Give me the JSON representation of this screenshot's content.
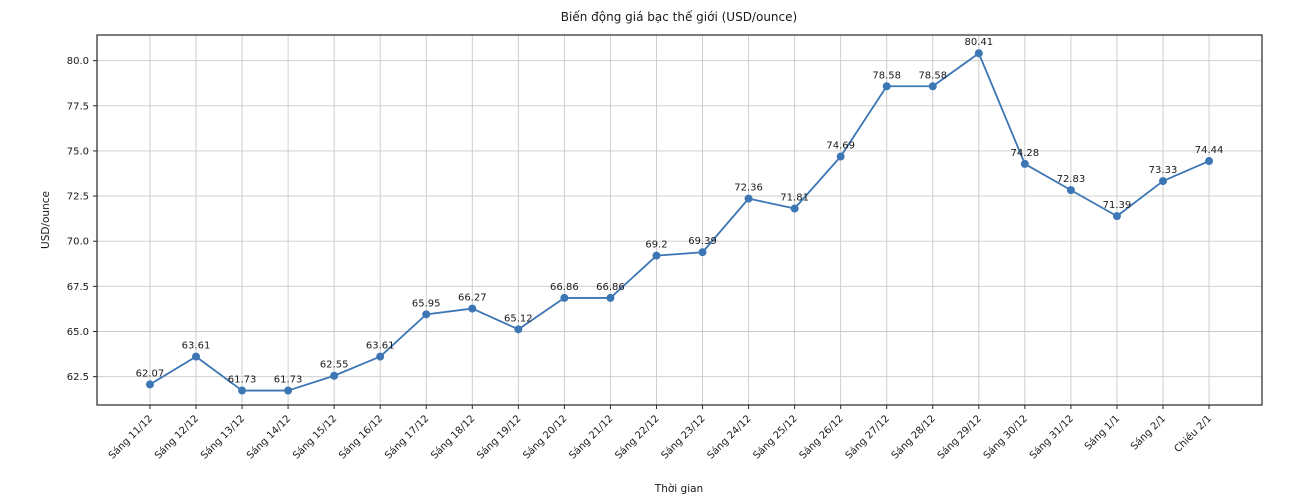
{
  "chart_data": {
    "type": "line",
    "title": "Biến động giá bạc thế giới (USD/ounce)",
    "xlabel": "Thời gian",
    "ylabel": "USD/ounce",
    "categories": [
      "Sáng 11/12",
      "Sáng 12/12",
      "Sáng 13/12",
      "Sáng 14/12",
      "Sáng 15/12",
      "Sáng 16/12",
      "Sáng 17/12",
      "Sáng 18/12",
      "Sáng 19/12",
      "Sáng 20/12",
      "Sáng 21/12",
      "Sáng 22/12",
      "Sáng 23/12",
      "Sáng 24/12",
      "Sáng 25/12",
      "Sáng 26/12",
      "Sáng 27/12",
      "Sáng 28/12",
      "Sáng 29/12",
      "Sáng 30/12",
      "Sáng 31/12",
      "Sáng 1/1",
      "Sáng 2/1",
      "Chiều 2/1"
    ],
    "values": [
      62.07,
      63.61,
      61.73,
      61.73,
      62.55,
      63.61,
      65.95,
      66.27,
      65.12,
      66.86,
      66.86,
      69.2,
      69.39,
      72.36,
      71.81,
      74.69,
      78.58,
      78.58,
      80.41,
      74.28,
      72.83,
      71.39,
      73.33,
      74.44
    ],
    "point_labels": [
      "62.07",
      "63.61",
      "61.73",
      "61.73",
      "62.55",
      "63.61",
      "65.95",
      "66.27",
      "65.12",
      "66.86",
      "66.86",
      "69.2",
      "69.39",
      "72.36",
      "71.81",
      "74.69",
      "78.58",
      "78.58",
      "80.41",
      "74.28",
      "72.83",
      "71.39",
      "73.33",
      "74.44"
    ],
    "ytick_labels": [
      "62.5",
      "65.0",
      "67.5",
      "70.0",
      "72.5",
      "75.0",
      "77.5",
      "80.0"
    ],
    "yticks": [
      62.5,
      65.0,
      67.5,
      70.0,
      72.5,
      75.0,
      77.5,
      80.0
    ],
    "ylim": [
      60.93,
      81.42
    ],
    "grid": true,
    "legend": "none",
    "line_color": "#3d76b4",
    "grid_color": "#c9c9c9",
    "axis_color": "#262626",
    "label_color": "#1a1a1a",
    "x_tick_rotation_deg": 45
  }
}
